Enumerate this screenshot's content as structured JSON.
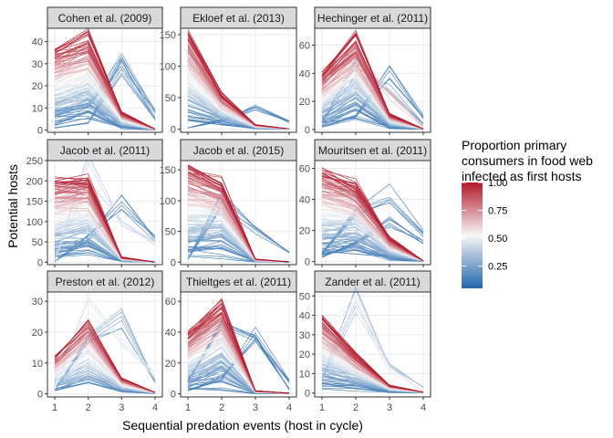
{
  "chart_data": {
    "type": "line",
    "xlabel": "Sequential predation events (host in cycle)",
    "ylabel": "Potential hosts",
    "x": [
      1,
      2,
      3,
      4
    ],
    "x_ticks": [
      "1",
      "2",
      "3",
      "4"
    ],
    "grid": true,
    "legend": {
      "title_lines": [
        "Proportion primary",
        "consumers in food web",
        "infected as first hosts"
      ],
      "placement": "right",
      "range": [
        0.05,
        1.0
      ],
      "ticks": [
        1.0,
        0.75,
        0.5,
        0.25
      ],
      "tick_labels": [
        "1.00",
        "0.75",
        "0.50",
        "0.25"
      ],
      "colors": {
        "low": "#2166ac",
        "mid": "#f7f7f7",
        "high": "#b2182b"
      }
    },
    "panels": [
      {
        "title": "Cohen et al. (2009)",
        "ylim": [
          -1,
          46
        ],
        "yticks": [
          0,
          10,
          20,
          30,
          40
        ],
        "peak_profile": [
          37,
          43,
          8,
          0.5
        ],
        "n_lines": 110,
        "type": "peak2",
        "extra": [
          {
            "values": [
              8,
              11,
              31,
              9
            ],
            "p": 0.15
          },
          {
            "values": [
              1,
              3,
              29,
              5
            ],
            "p": 0.1
          }
        ]
      },
      {
        "title": "Ekloef et al. (2013)",
        "ylim": [
          -5,
          160
        ],
        "yticks": [
          0,
          50,
          100,
          150
        ],
        "peak_profile": [
          157,
          56,
          7,
          0.5
        ],
        "n_lines": 110,
        "type": "decline",
        "extra": [
          {
            "values": [
              2,
              14,
              34,
              12
            ],
            "p": 0.1
          }
        ]
      },
      {
        "title": "Hechinger et al. (2011)",
        "ylim": [
          -2,
          72
        ],
        "yticks": [
          0,
          20,
          40,
          60
        ],
        "peak_profile": [
          40,
          67,
          11,
          0.5
        ],
        "n_lines": 110,
        "type": "peak2",
        "extra": [
          {
            "values": [
              5,
              45,
              28,
              4
            ],
            "p": 0.2
          },
          {
            "values": [
              2,
              10,
              42,
              9
            ],
            "p": 0.1
          },
          {
            "values": [
              40,
              52,
              25,
              2
            ],
            "p": 0.6
          }
        ]
      },
      {
        "title": "Jacob et al. (2011)",
        "ylim": [
          -6,
          250
        ],
        "yticks": [
          0,
          50,
          100,
          150,
          200,
          250
        ],
        "peak_profile": [
          205,
          208,
          12,
          0.5
        ],
        "n_lines": 120,
        "type": "peak2",
        "extra": [
          {
            "values": [
              4,
              235,
              90,
              45
            ],
            "p": 0.4
          },
          {
            "values": [
              2,
              60,
              145,
              58
            ],
            "p": 0.1
          }
        ]
      },
      {
        "title": "Jacob et al. (2015)",
        "ylim": [
          -4,
          165
        ],
        "yticks": [
          0,
          50,
          100,
          150
        ],
        "peak_profile": [
          160,
          135,
          5,
          0.5
        ],
        "n_lines": 120,
        "type": "peak2",
        "extra": [
          {
            "values": [
              5,
              100,
              52,
              15
            ],
            "p": 0.1
          }
        ]
      },
      {
        "title": "Mouritsen et al. (2011)",
        "ylim": [
          -2,
          65
        ],
        "yticks": [
          0,
          20,
          40,
          60
        ],
        "peak_profile": [
          60,
          50,
          15,
          0.5
        ],
        "n_lines": 120,
        "type": "peak2",
        "extra": [
          {
            "values": [
              5,
              30,
              44,
              18
            ],
            "p": 0.1
          },
          {
            "values": [
              3,
              12,
              26,
              12
            ],
            "p": 0.1
          }
        ]
      },
      {
        "title": "Preston et al. (2012)",
        "ylim": [
          -1,
          33
        ],
        "yticks": [
          0,
          10,
          20,
          30
        ],
        "peak_profile": [
          12,
          24,
          5,
          0.5
        ],
        "n_lines": 60,
        "type": "peak2",
        "extra": [
          {
            "values": [
              2,
              31,
              18,
              6
            ],
            "p": 0.45
          },
          {
            "values": [
              1,
              19,
              24,
              4
            ],
            "p": 0.2
          }
        ]
      },
      {
        "title": "Thieltges et al. (2011)",
        "ylim": [
          -2,
          66
        ],
        "yticks": [
          0,
          20,
          40,
          60
        ],
        "peak_profile": [
          40,
          60,
          2,
          0.5
        ],
        "n_lines": 110,
        "type": "peak2",
        "extra": [
          {
            "values": [
              8,
              45,
              35,
              3
            ],
            "p": 0.1
          },
          {
            "values": [
              2,
              10,
              40,
              8
            ],
            "p": 0.1
          }
        ]
      },
      {
        "title": "Zander et al. (2011)",
        "ylim": [
          -2,
          52
        ],
        "yticks": [
          0,
          10,
          20,
          30,
          40,
          50
        ],
        "peak_profile": [
          40,
          20,
          4,
          0.5
        ],
        "n_lines": 110,
        "type": "peak2",
        "extra": [
          {
            "values": [
              8,
              48,
              15,
              3
            ],
            "p": 0.3
          },
          {
            "values": [
              30,
              45,
              12,
              1
            ],
            "p": 0.5
          }
        ]
      }
    ]
  }
}
